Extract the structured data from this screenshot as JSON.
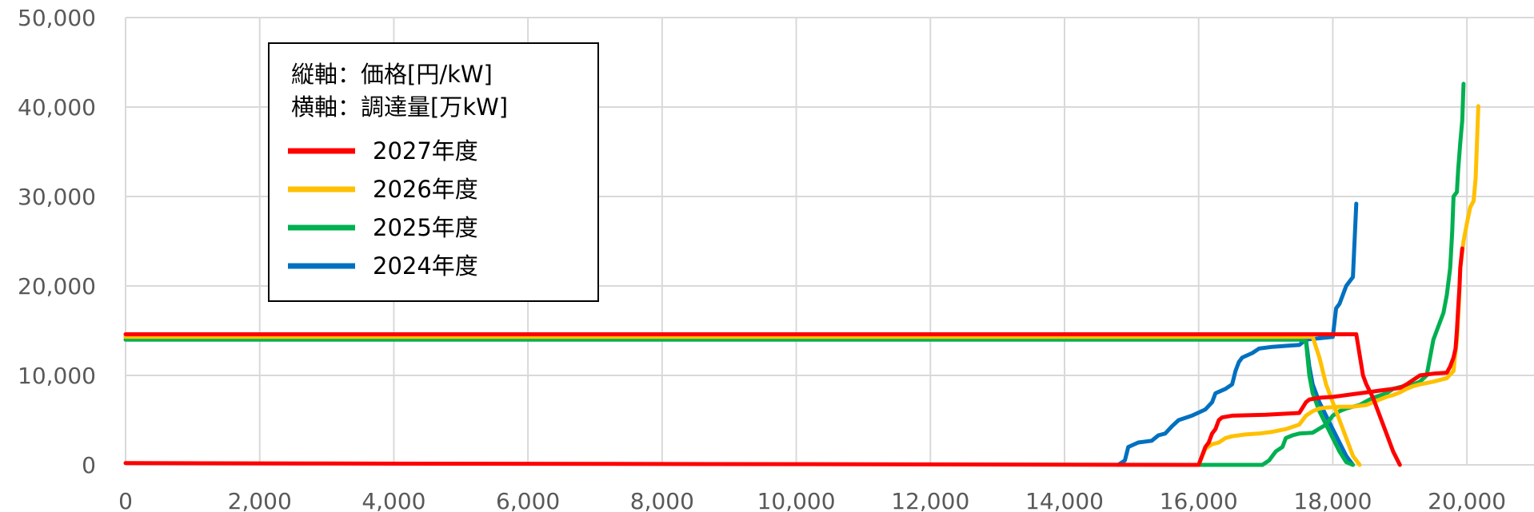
{
  "chart_data": {
    "type": "line",
    "title": "",
    "xlabel": "",
    "ylabel": "",
    "xlim": [
      0,
      21000
    ],
    "ylim": [
      0,
      50000
    ],
    "x_ticks": [
      0,
      2000,
      4000,
      6000,
      8000,
      10000,
      12000,
      14000,
      16000,
      18000,
      20000
    ],
    "y_ticks": [
      0,
      10000,
      20000,
      30000,
      40000,
      50000
    ],
    "x_tick_labels": [
      "0",
      "2,000",
      "4,000",
      "6,000",
      "8,000",
      "10,000",
      "12,000",
      "14,000",
      "16,000",
      "18,000",
      "20,000"
    ],
    "y_tick_labels": [
      "0",
      "10,000",
      "20,000",
      "30,000",
      "40,000",
      "50,000"
    ],
    "grid": true,
    "legend_position": "top-left",
    "legend_notes": [
      "縦軸：価格[円/kW]",
      "横軸：調達量[万kW]"
    ],
    "series": [
      {
        "name": "2024年度",
        "color": "#0070C0",
        "segments": [
          [
            [
              0,
              14300
            ],
            [
              17500,
              14300
            ],
            [
              17600,
              14000
            ],
            [
              18000,
              14300
            ],
            [
              18050,
              17500
            ],
            [
              18100,
              18000
            ],
            [
              18200,
              20000
            ],
            [
              18300,
              21000
            ],
            [
              18350,
              29200
            ]
          ],
          [
            [
              14800,
              0
            ],
            [
              14900,
              500
            ],
            [
              14950,
              2000
            ],
            [
              15100,
              2500
            ],
            [
              15300,
              2700
            ],
            [
              15400,
              3300
            ],
            [
              15500,
              3500
            ],
            [
              15600,
              4300
            ],
            [
              15700,
              5000
            ],
            [
              15900,
              5500
            ],
            [
              16100,
              6200
            ],
            [
              16200,
              7000
            ],
            [
              16250,
              8000
            ],
            [
              16400,
              8500
            ],
            [
              16500,
              9000
            ],
            [
              16550,
              10500
            ],
            [
              16600,
              11500
            ],
            [
              16650,
              12000
            ],
            [
              16800,
              12500
            ],
            [
              16900,
              13000
            ],
            [
              17100,
              13200
            ],
            [
              17300,
              13300
            ],
            [
              17500,
              13400
            ],
            [
              17600,
              14000
            ],
            [
              17650,
              11000
            ],
            [
              17700,
              9000
            ],
            [
              17800,
              7000
            ],
            [
              18000,
              4000
            ],
            [
              18200,
              1000
            ],
            [
              18300,
              0
            ]
          ]
        ]
      },
      {
        "name": "2025年度",
        "color": "#00B050",
        "segments": [
          [
            [
              0,
              14000
            ],
            [
              17500,
              14000
            ],
            [
              17600,
              13800
            ],
            [
              17650,
              10000
            ],
            [
              17700,
              8000
            ],
            [
              17800,
              6000
            ],
            [
              17900,
              4500
            ],
            [
              18000,
              3000
            ],
            [
              18100,
              1500
            ],
            [
              18200,
              300
            ],
            [
              18300,
              0
            ]
          ],
          [
            [
              16000,
              0
            ],
            [
              16950,
              0
            ],
            [
              17050,
              500
            ],
            [
              17150,
              1500
            ],
            [
              17250,
              2000
            ],
            [
              17300,
              3000
            ],
            [
              17400,
              3300
            ],
            [
              17500,
              3500
            ],
            [
              17700,
              3600
            ],
            [
              17900,
              4500
            ],
            [
              18000,
              5500
            ],
            [
              18100,
              6000
            ],
            [
              18200,
              6300
            ],
            [
              18400,
              6700
            ],
            [
              18600,
              7500
            ],
            [
              18800,
              8000
            ],
            [
              18900,
              8500
            ],
            [
              19000,
              8700
            ],
            [
              19200,
              9000
            ],
            [
              19300,
              9300
            ],
            [
              19400,
              10000
            ],
            [
              19450,
              12000
            ],
            [
              19500,
              14000
            ],
            [
              19550,
              15000
            ],
            [
              19600,
              16000
            ],
            [
              19650,
              17000
            ],
            [
              19700,
              19000
            ],
            [
              19750,
              22000
            ],
            [
              19780,
              26000
            ],
            [
              19800,
              30000
            ],
            [
              19850,
              30500
            ],
            [
              19870,
              33000
            ],
            [
              19900,
              36000
            ],
            [
              19930,
              38500
            ],
            [
              19950,
              42600
            ]
          ]
        ]
      },
      {
        "name": "2026年度",
        "color": "#FFC000",
        "segments": [
          [
            [
              0,
              14300
            ],
            [
              17700,
              14300
            ],
            [
              17800,
              12000
            ],
            [
              17900,
              9000
            ],
            [
              18000,
              7000
            ],
            [
              18100,
              5000
            ],
            [
              18200,
              3000
            ],
            [
              18300,
              1000
            ],
            [
              18400,
              0
            ]
          ],
          [
            [
              16000,
              0
            ],
            [
              16100,
              1800
            ],
            [
              16200,
              2300
            ],
            [
              16300,
              2500
            ],
            [
              16400,
              3000
            ],
            [
              16500,
              3200
            ],
            [
              16700,
              3400
            ],
            [
              16900,
              3500
            ],
            [
              17100,
              3700
            ],
            [
              17300,
              4000
            ],
            [
              17500,
              4500
            ],
            [
              17600,
              5500
            ],
            [
              17700,
              6000
            ],
            [
              17800,
              6300
            ],
            [
              17900,
              6400
            ],
            [
              18100,
              6500
            ],
            [
              18300,
              6500
            ],
            [
              18500,
              6700
            ],
            [
              18700,
              7300
            ],
            [
              18800,
              7600
            ],
            [
              18900,
              7800
            ],
            [
              19000,
              8100
            ],
            [
              19100,
              8500
            ],
            [
              19200,
              8800
            ],
            [
              19300,
              9000
            ],
            [
              19500,
              9300
            ],
            [
              19700,
              9700
            ],
            [
              19800,
              10500
            ],
            [
              19820,
              12000
            ],
            [
              19850,
              14000
            ],
            [
              19880,
              18000
            ],
            [
              19900,
              22000
            ],
            [
              19950,
              25000
            ],
            [
              20000,
              27000
            ],
            [
              20050,
              28800
            ],
            [
              20100,
              29500
            ],
            [
              20130,
              32000
            ],
            [
              20150,
              36000
            ],
            [
              20170,
              40100
            ]
          ]
        ]
      },
      {
        "name": "2027年度",
        "color": "#FF0000",
        "segments": [
          [
            [
              0,
              14600
            ],
            [
              18350,
              14600
            ],
            [
              18450,
              10000
            ],
            [
              18500,
              9000
            ],
            [
              18600,
              7500
            ],
            [
              18700,
              5500
            ],
            [
              18800,
              3500
            ],
            [
              18900,
              1500
            ],
            [
              19000,
              0
            ]
          ],
          [
            [
              0,
              200
            ],
            [
              3000,
              150
            ],
            [
              8000,
              100
            ],
            [
              12000,
              50
            ],
            [
              16000,
              0
            ],
            [
              16050,
              1000
            ],
            [
              16100,
              2000
            ],
            [
              16150,
              2500
            ],
            [
              16200,
              3500
            ],
            [
              16250,
              4000
            ],
            [
              16300,
              5000
            ],
            [
              16350,
              5300
            ],
            [
              16500,
              5500
            ],
            [
              17000,
              5600
            ],
            [
              17500,
              5800
            ],
            [
              17600,
              7000
            ],
            [
              17650,
              7300
            ],
            [
              17800,
              7500
            ],
            [
              18000,
              7600
            ],
            [
              18100,
              7700
            ],
            [
              18300,
              7900
            ],
            [
              18500,
              8100
            ],
            [
              18700,
              8300
            ],
            [
              18900,
              8500
            ],
            [
              19000,
              8600
            ],
            [
              19100,
              9000
            ],
            [
              19200,
              9500
            ],
            [
              19300,
              10000
            ],
            [
              19500,
              10200
            ],
            [
              19700,
              10300
            ],
            [
              19750,
              11000
            ],
            [
              19800,
              12000
            ],
            [
              19830,
              13000
            ],
            [
              19850,
              15000
            ],
            [
              19870,
              17500
            ],
            [
              19890,
              20000
            ],
            [
              19900,
              22000
            ],
            [
              19930,
              24200
            ]
          ]
        ]
      }
    ],
    "legend_order": [
      "2027年度",
      "2026年度",
      "2025年度",
      "2024年度"
    ]
  }
}
